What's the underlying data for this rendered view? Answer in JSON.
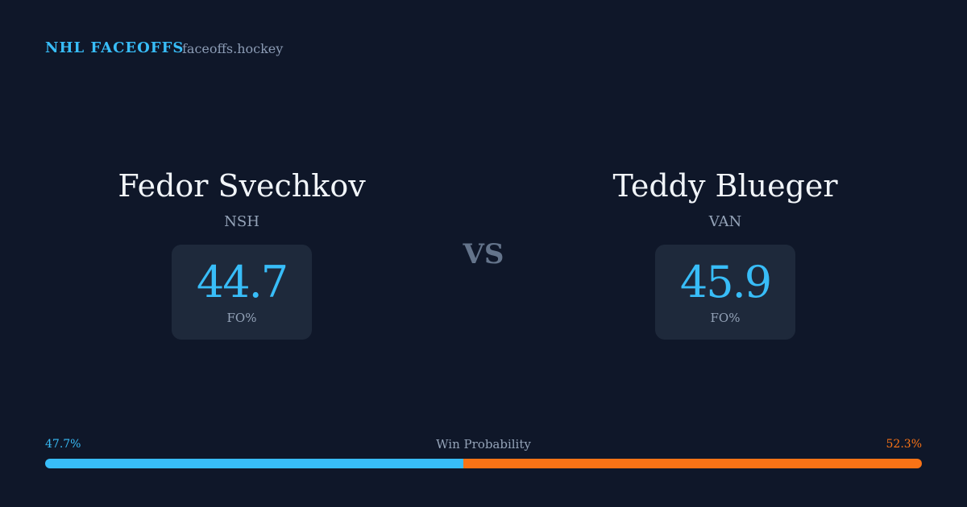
{
  "header": {
    "brand": "NHL FACEOFFS",
    "site": "faceoffs.hockey"
  },
  "players": [
    {
      "name": "Fedor Svechkov",
      "team": "NSH",
      "stat": 44.7,
      "stat_label": "FO%"
    },
    {
      "name": "Teddy Blueger",
      "team": "VAN",
      "stat": 45.9,
      "stat_label": "FO%"
    }
  ],
  "vs": "VS",
  "win_probability": {
    "label": "Win Probability",
    "left": {
      "value": 47.7,
      "label": "47.7%",
      "color": "#38bdf8"
    },
    "right": {
      "value": 52.3,
      "label": "52.3%",
      "color": "#f97316"
    }
  }
}
